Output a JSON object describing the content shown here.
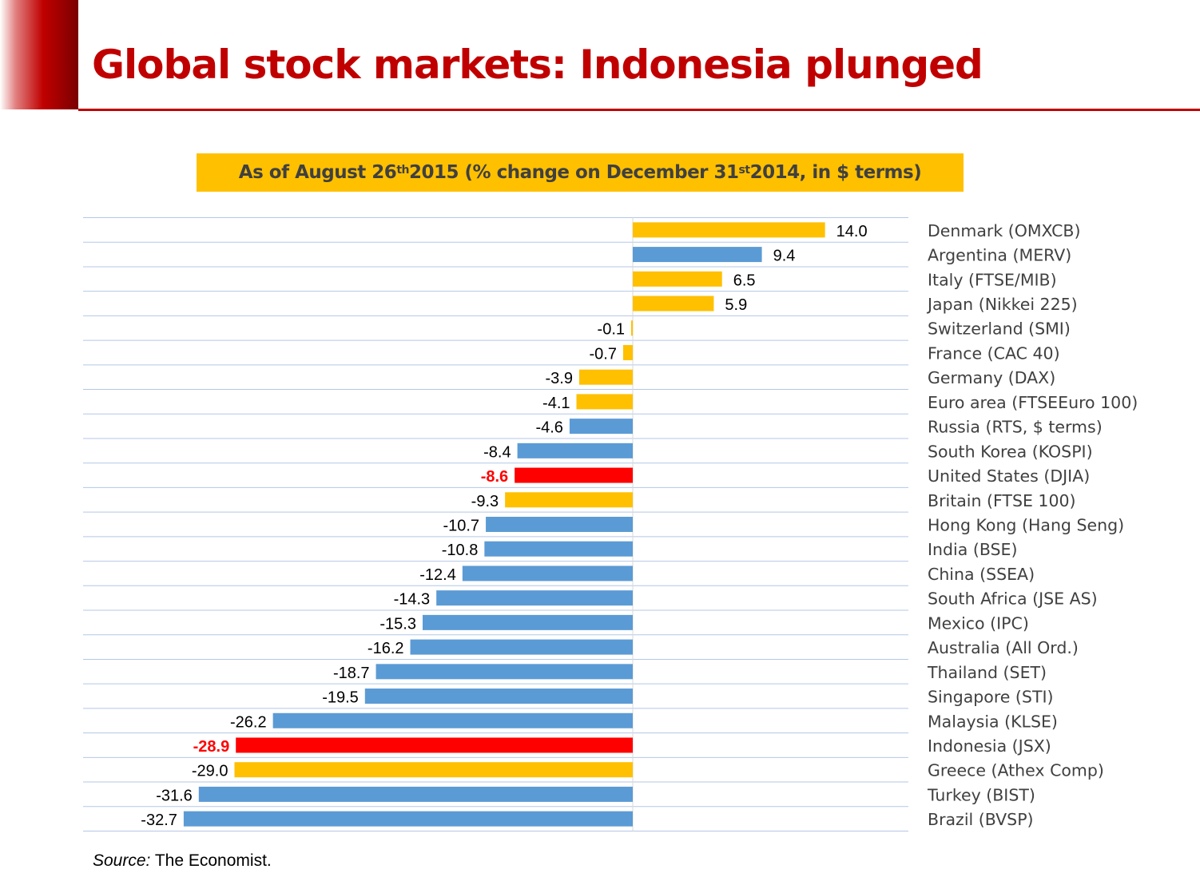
{
  "slide": {
    "title": "Global stock markets: Indonesia plunged",
    "subtitle": {
      "part1": "As of August 26",
      "sup1": "th",
      "part2": " 2015 (% change on December 31",
      "sup2": "st",
      "part3": " 2014, in $ terms)"
    },
    "source_label": "Source:",
    "source_text": "The Economist."
  },
  "colors": {
    "accent": "#c00000",
    "europe": "#ffc000",
    "other": "#5b9bd5",
    "highlight": "#ff0000",
    "highlight_text": "#ff0000",
    "label_text": "#000000",
    "category_text": "#404040",
    "gridline": "#b4c7e7"
  },
  "chart_data": {
    "type": "bar",
    "orientation": "horizontal",
    "unit": "%",
    "xlim": [
      -40,
      20
    ],
    "grid": true,
    "categories": [
      "Denmark (OMXCB)",
      "Argentina (MERV)",
      "Italy (FTSE/MIB)",
      "Japan (Nikkei 225)",
      "Switzerland (SMI)",
      "France (CAC 40)",
      "Germany (DAX)",
      "Euro area (FTSEEuro 100)",
      "Russia (RTS, $ terms)",
      "South Korea (KOSPI)",
      "United States (DJIA)",
      "Britain (FTSE 100)",
      "Hong Kong (Hang Seng)",
      "India (BSE)",
      "China (SSEA)",
      "South Africa (JSE AS)",
      "Mexico (IPC)",
      "Australia (All Ord.)",
      "Thailand (SET)",
      "Singapore (STI)",
      "Malaysia (KLSE)",
      "Indonesia (JSX)",
      "Greece (Athex Comp)",
      "Turkey (BIST)",
      "Brazil (BVSP)"
    ],
    "values": [
      14.0,
      9.4,
      6.5,
      5.9,
      -0.1,
      -0.7,
      -3.9,
      -4.1,
      -4.6,
      -8.4,
      -8.6,
      -9.3,
      -10.7,
      -10.8,
      -12.4,
      -14.3,
      -15.3,
      -16.2,
      -18.7,
      -19.5,
      -26.2,
      -28.9,
      -29.0,
      -31.6,
      -32.7
    ],
    "labels": [
      "14.0",
      "9.4",
      "6.5",
      "5.9",
      "-0.1",
      "-0.7",
      "-3.9",
      "-4.1",
      "-4.6",
      "-8.4",
      "-8.6",
      "-9.3",
      "-10.7",
      "-10.8",
      "-12.4",
      "-14.3",
      "-15.3",
      "-16.2",
      "-18.7",
      "-19.5",
      "-26.2",
      "-28.9",
      "-29.0",
      "-31.6",
      "-32.7"
    ],
    "bar_groups": [
      "europe",
      "other",
      "europe",
      "europe",
      "europe",
      "europe",
      "europe",
      "europe",
      "other",
      "other",
      "highlight",
      "europe",
      "other",
      "other",
      "other",
      "other",
      "other",
      "other",
      "other",
      "other",
      "other",
      "highlight",
      "europe",
      "other",
      "other"
    ],
    "highlighted": [
      "United States (DJIA)",
      "Indonesia (JSX)"
    ]
  }
}
